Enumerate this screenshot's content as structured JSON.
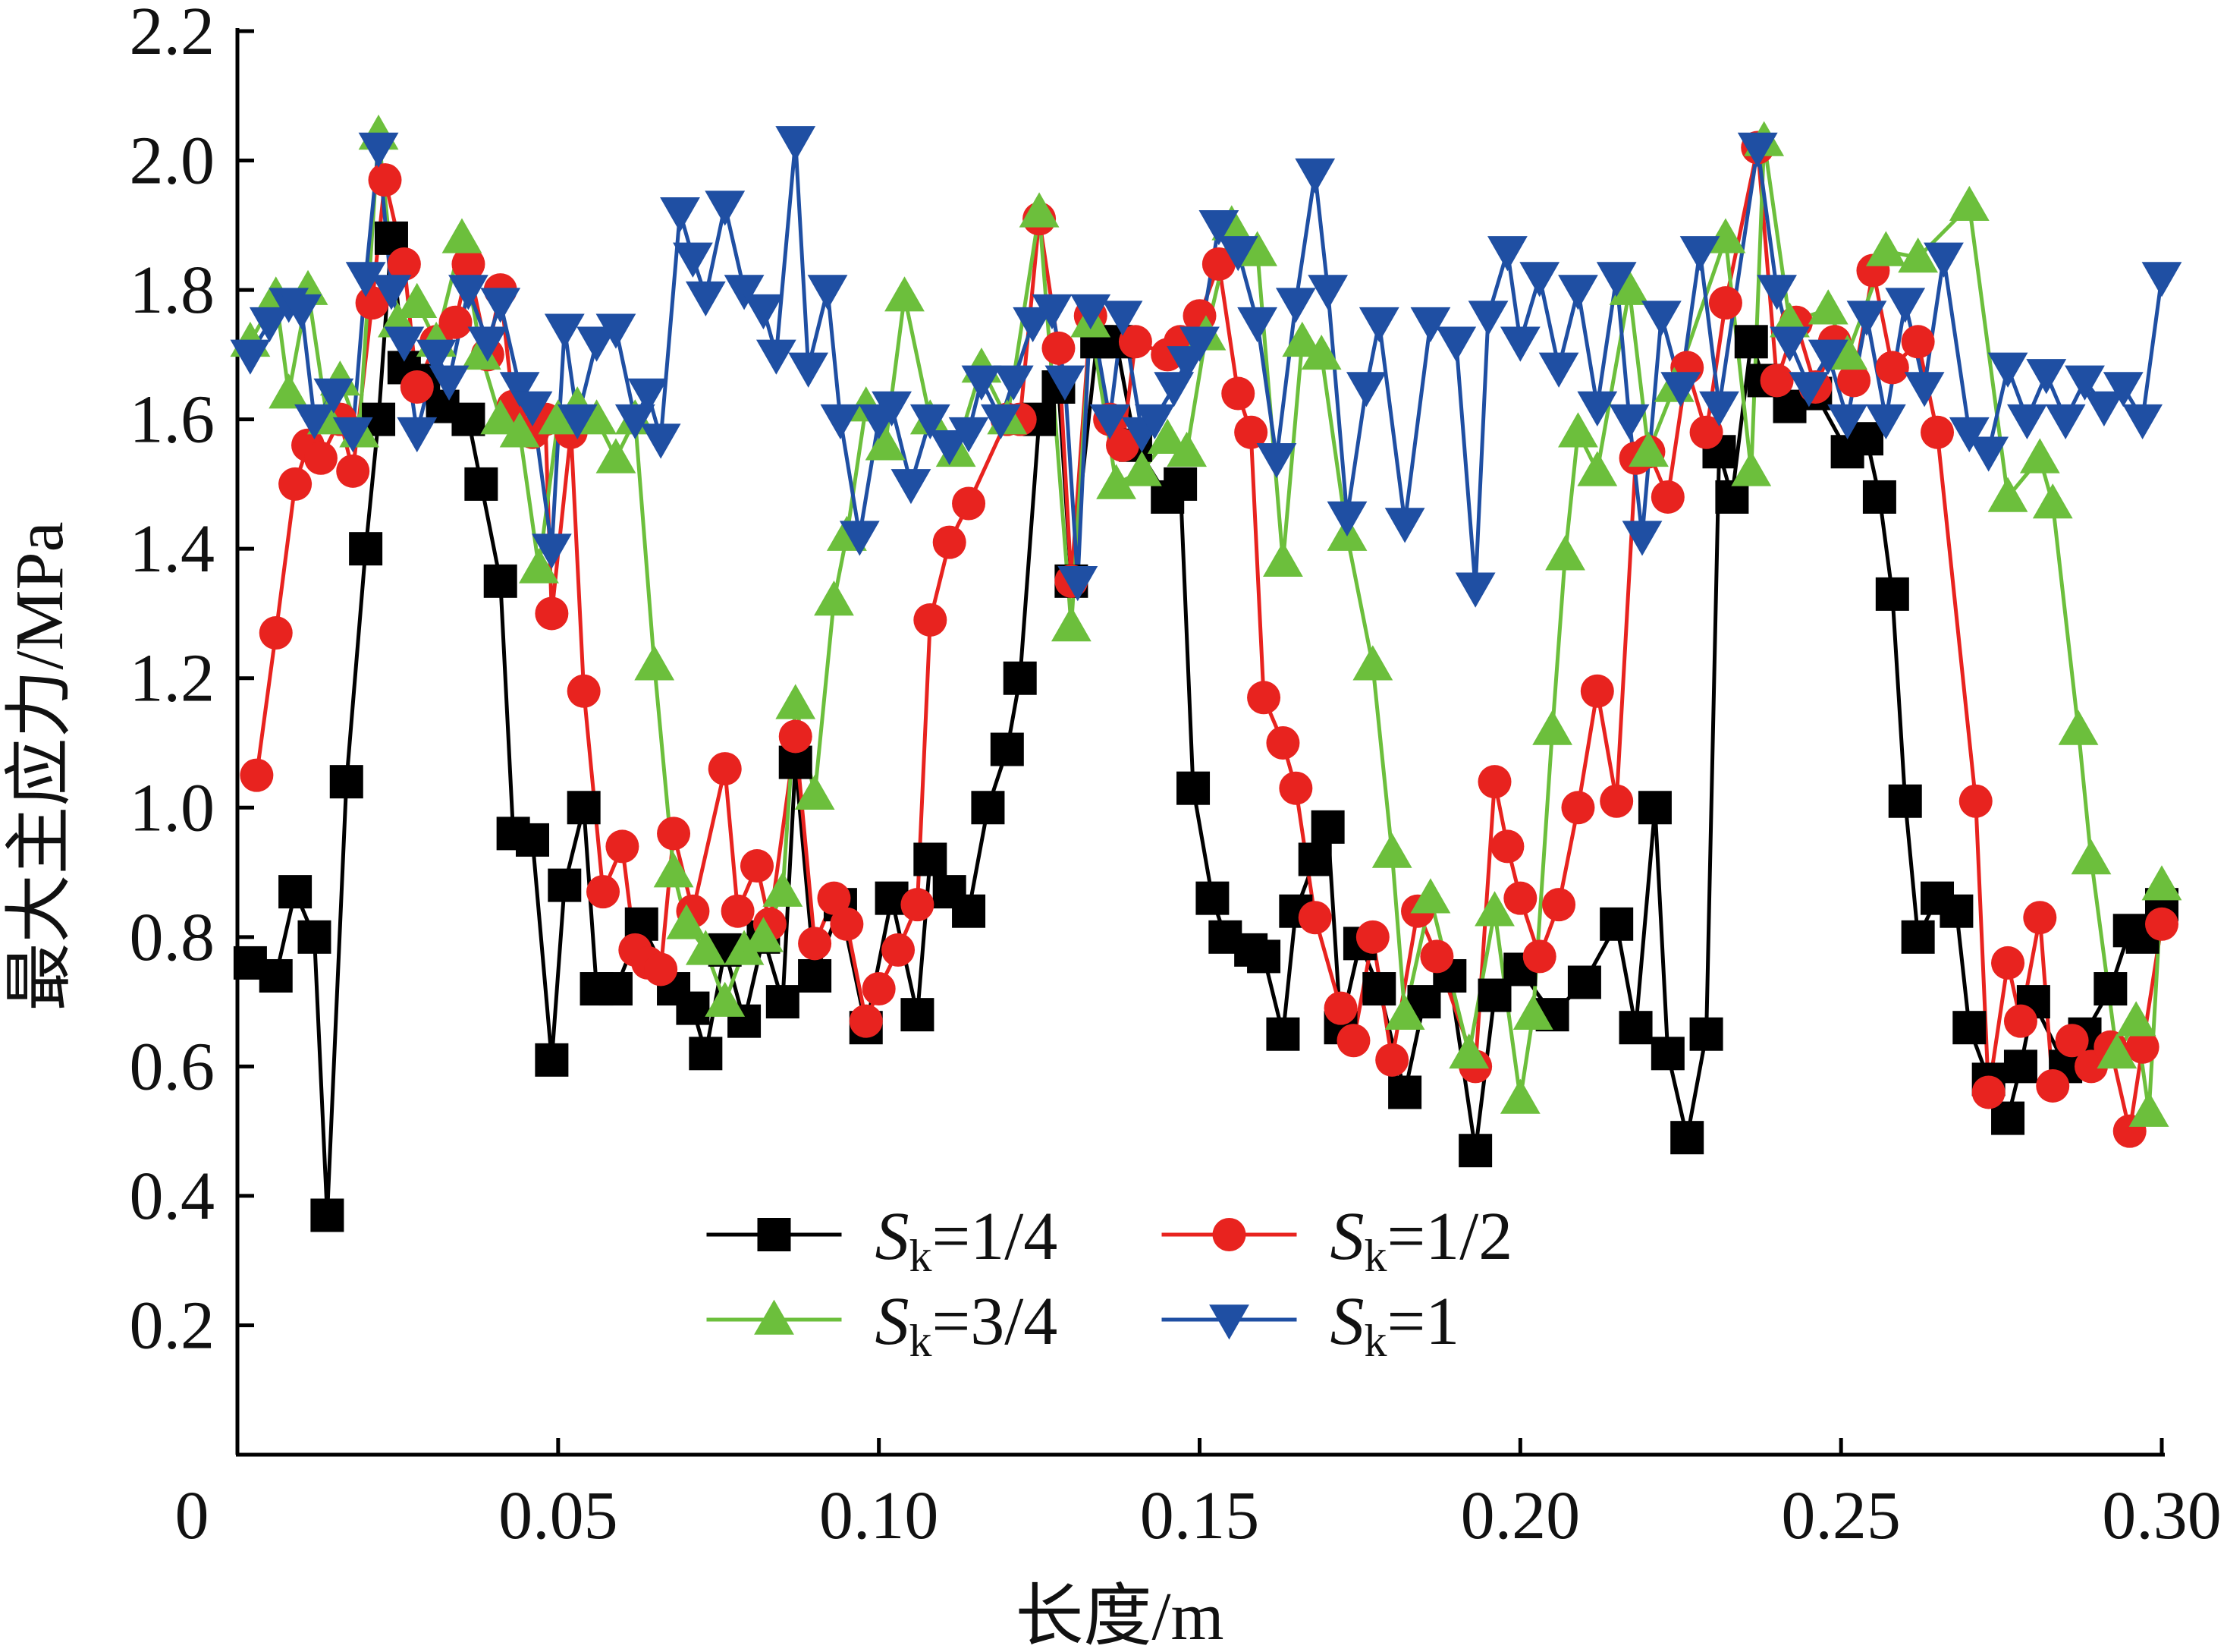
{
  "chart_data": {
    "type": "line",
    "xlabel": "长度/m",
    "ylabel": "最大主应力/MPa",
    "xlim": [
      0,
      0.3
    ],
    "ylim": [
      0,
      2.2
    ],
    "xticks": [
      0,
      0.05,
      {
        "value": 0.1,
        "label": "0.10"
      },
      0.15,
      {
        "value": 0.2,
        "label": "0.20"
      },
      0.25,
      {
        "value": 0.3,
        "label": "0.30"
      }
    ],
    "yticks": [
      0.2,
      0.4,
      0.6,
      0.8,
      {
        "value": 1,
        "label": "1.0"
      },
      1.2,
      1.4,
      1.6,
      1.8,
      {
        "value": 2,
        "label": "2.0"
      },
      2.2
    ],
    "legend_loc": "lower center",
    "series": [
      {
        "name": "Sk=1/4",
        "color": "#000000",
        "marker": "square",
        "x": [
          0.002,
          0.006,
          0.009,
          0.012,
          0.014,
          0.017,
          0.02,
          0.022,
          0.024,
          0.026,
          0.029,
          0.032,
          0.036,
          0.038,
          0.041,
          0.043,
          0.046,
          0.049,
          0.051,
          0.054,
          0.056,
          0.059,
          0.063,
          0.068,
          0.071,
          0.073,
          0.076,
          0.079,
          0.082,
          0.085,
          0.087,
          0.09,
          0.094,
          0.098,
          0.102,
          0.106,
          0.108,
          0.111,
          0.114,
          0.117,
          0.12,
          0.122,
          0.125,
          0.128,
          0.13,
          0.134,
          0.137,
          0.14,
          0.145,
          0.147,
          0.149,
          0.152,
          0.154,
          0.158,
          0.16,
          0.163,
          0.165,
          0.168,
          0.17,
          0.172,
          0.175,
          0.178,
          0.182,
          0.185,
          0.189,
          0.193,
          0.196,
          0.2,
          0.205,
          0.21,
          0.215,
          0.218,
          0.221,
          0.223,
          0.226,
          0.229,
          0.231,
          0.233,
          0.236,
          0.238,
          0.242,
          0.246,
          0.251,
          0.254,
          0.256,
          0.258,
          0.26,
          0.262,
          0.265,
          0.268,
          0.27,
          0.273,
          0.276,
          0.278,
          0.28,
          0.285,
          0.288,
          0.292,
          0.295,
          0.297,
          0.3
        ],
        "values": [
          0.76,
          0.74,
          0.87,
          0.8,
          0.37,
          1.04,
          1.4,
          1.6,
          1.88,
          1.68,
          1.66,
          1.62,
          1.6,
          1.5,
          1.35,
          0.96,
          0.95,
          0.61,
          0.88,
          1.0,
          0.72,
          0.72,
          0.82,
          0.72,
          0.69,
          0.62,
          0.78,
          0.67,
          0.8,
          0.7,
          1.07,
          0.74,
          0.85,
          0.66,
          0.86,
          0.68,
          0.92,
          0.87,
          0.84,
          1.0,
          1.09,
          1.2,
          1.6,
          1.65,
          1.35,
          1.72,
          1.72,
          1.56,
          1.48,
          1.5,
          1.03,
          0.86,
          0.8,
          0.78,
          0.77,
          0.65,
          0.84,
          0.92,
          0.97,
          0.66,
          0.79,
          0.72,
          0.56,
          0.7,
          0.74,
          0.47,
          0.71,
          0.75,
          0.68,
          0.73,
          0.82,
          0.66,
          1.0,
          0.62,
          0.49,
          0.65,
          1.55,
          1.48,
          1.72,
          1.66,
          1.62,
          1.64,
          1.55,
          1.57,
          1.48,
          1.33,
          1.01,
          0.8,
          0.86,
          0.84,
          0.66,
          0.58,
          0.52,
          0.6,
          0.7,
          0.6,
          0.65,
          0.72,
          0.81,
          0.8,
          0.85
        ]
      },
      {
        "name": "Sk=1/2",
        "color": "#e8231f",
        "marker": "circle",
        "x": [
          0.003,
          0.006,
          0.009,
          0.011,
          0.013,
          0.016,
          0.018,
          0.021,
          0.023,
          0.026,
          0.028,
          0.031,
          0.034,
          0.036,
          0.039,
          0.041,
          0.043,
          0.046,
          0.048,
          0.049,
          0.052,
          0.054,
          0.057,
          0.06,
          0.062,
          0.064,
          0.066,
          0.068,
          0.071,
          0.076,
          0.078,
          0.081,
          0.083,
          0.087,
          0.09,
          0.093,
          0.095,
          0.098,
          0.1,
          0.103,
          0.106,
          0.108,
          0.111,
          0.114,
          0.12,
          0.122,
          0.125,
          0.128,
          0.13,
          0.133,
          0.136,
          0.138,
          0.14,
          0.145,
          0.147,
          0.15,
          0.153,
          0.156,
          0.158,
          0.16,
          0.163,
          0.165,
          0.168,
          0.172,
          0.174,
          0.177,
          0.18,
          0.184,
          0.187,
          0.193,
          0.196,
          0.198,
          0.2,
          0.203,
          0.206,
          0.209,
          0.212,
          0.215,
          0.218,
          0.22,
          0.223,
          0.226,
          0.229,
          0.232,
          0.237,
          0.24,
          0.243,
          0.246,
          0.249,
          0.252,
          0.255,
          0.258,
          0.262,
          0.265,
          0.271,
          0.273,
          0.276,
          0.278,
          0.281,
          0.283,
          0.286,
          0.289,
          0.292,
          0.295,
          0.297,
          0.3
        ],
        "values": [
          1.05,
          1.27,
          1.5,
          1.56,
          1.54,
          1.6,
          1.52,
          1.78,
          1.97,
          1.84,
          1.65,
          1.72,
          1.75,
          1.84,
          1.7,
          1.8,
          1.62,
          1.58,
          1.6,
          1.3,
          1.58,
          1.18,
          0.87,
          0.94,
          0.78,
          0.76,
          0.75,
          0.96,
          0.84,
          1.06,
          0.84,
          0.91,
          0.82,
          1.11,
          0.79,
          0.86,
          0.82,
          0.67,
          0.72,
          0.78,
          0.85,
          1.29,
          1.41,
          1.47,
          1.6,
          1.6,
          1.91,
          1.71,
          1.35,
          1.76,
          1.6,
          1.56,
          1.72,
          1.7,
          1.72,
          1.76,
          1.84,
          1.64,
          1.58,
          1.17,
          1.1,
          1.03,
          0.83,
          0.69,
          0.64,
          0.8,
          0.61,
          0.84,
          0.77,
          0.6,
          1.04,
          0.94,
          0.86,
          0.77,
          0.85,
          1.0,
          1.18,
          1.01,
          1.54,
          1.55,
          1.48,
          1.68,
          1.58,
          1.78,
          2.02,
          1.66,
          1.75,
          1.65,
          1.72,
          1.66,
          1.83,
          1.68,
          1.72,
          1.58,
          1.01,
          0.56,
          0.76,
          0.67,
          0.83,
          0.57,
          0.64,
          0.6,
          0.63,
          0.5,
          0.63,
          0.82
        ]
      },
      {
        "name": "Sk=3/4",
        "color": "#6cbf3c",
        "marker": "triangle-up",
        "x": [
          0.002,
          0.006,
          0.008,
          0.011,
          0.014,
          0.016,
          0.019,
          0.022,
          0.025,
          0.028,
          0.031,
          0.035,
          0.038,
          0.041,
          0.044,
          0.047,
          0.05,
          0.053,
          0.056,
          0.059,
          0.062,
          0.065,
          0.068,
          0.07,
          0.073,
          0.076,
          0.079,
          0.082,
          0.085,
          0.087,
          0.09,
          0.093,
          0.095,
          0.098,
          0.101,
          0.104,
          0.108,
          0.112,
          0.116,
          0.12,
          0.125,
          0.13,
          0.133,
          0.137,
          0.141,
          0.145,
          0.148,
          0.151,
          0.155,
          0.159,
          0.163,
          0.166,
          0.169,
          0.173,
          0.177,
          0.18,
          0.182,
          0.186,
          0.192,
          0.196,
          0.2,
          0.202,
          0.205,
          0.207,
          0.209,
          0.212,
          0.217,
          0.22,
          0.224,
          0.232,
          0.236,
          0.238,
          0.242,
          0.248,
          0.251,
          0.257,
          0.262,
          0.27,
          0.276,
          0.281,
          0.283,
          0.287,
          0.289,
          0.293,
          0.296,
          0.298,
          0.3
        ],
        "values": [
          1.72,
          1.79,
          1.64,
          1.8,
          1.6,
          1.66,
          1.58,
          2.04,
          1.75,
          1.78,
          1.72,
          1.88,
          1.7,
          1.6,
          1.58,
          1.37,
          1.6,
          1.62,
          1.6,
          1.54,
          1.6,
          1.22,
          0.9,
          0.82,
          0.78,
          0.7,
          0.78,
          0.8,
          0.87,
          1.16,
          1.02,
          1.32,
          1.42,
          1.62,
          1.56,
          1.79,
          1.6,
          1.55,
          1.68,
          1.6,
          1.92,
          1.28,
          1.75,
          1.5,
          1.52,
          1.57,
          1.55,
          1.73,
          1.9,
          1.86,
          1.38,
          1.72,
          1.7,
          1.42,
          1.22,
          0.93,
          0.68,
          0.86,
          0.62,
          0.84,
          0.55,
          0.68,
          1.12,
          1.39,
          1.58,
          1.52,
          1.8,
          1.55,
          1.65,
          1.88,
          1.52,
          2.03,
          1.75,
          1.77,
          1.7,
          1.86,
          1.85,
          1.93,
          1.48,
          1.54,
          1.47,
          1.12,
          0.92,
          0.62,
          0.67,
          0.53,
          0.88
        ]
      },
      {
        "name": "Sk=1",
        "color": "#1f4fa3",
        "marker": "triangle-down",
        "x": [
          0.002,
          0.005,
          0.008,
          0.01,
          0.012,
          0.015,
          0.018,
          0.02,
          0.022,
          0.024,
          0.026,
          0.028,
          0.031,
          0.033,
          0.036,
          0.039,
          0.041,
          0.044,
          0.046,
          0.049,
          0.051,
          0.053,
          0.056,
          0.059,
          0.062,
          0.064,
          0.066,
          0.069,
          0.071,
          0.073,
          0.076,
          0.079,
          0.082,
          0.084,
          0.087,
          0.089,
          0.092,
          0.094,
          0.097,
          0.1,
          0.102,
          0.105,
          0.108,
          0.111,
          0.114,
          0.116,
          0.119,
          0.121,
          0.124,
          0.127,
          0.129,
          0.131,
          0.133,
          0.136,
          0.138,
          0.141,
          0.143,
          0.146,
          0.148,
          0.15,
          0.153,
          0.156,
          0.159,
          0.162,
          0.165,
          0.168,
          0.17,
          0.173,
          0.176,
          0.178,
          0.182,
          0.186,
          0.19,
          0.193,
          0.195,
          0.198,
          0.2,
          0.203,
          0.206,
          0.209,
          0.212,
          0.215,
          0.217,
          0.219,
          0.222,
          0.225,
          0.228,
          0.231,
          0.237,
          0.24,
          0.242,
          0.245,
          0.248,
          0.251,
          0.254,
          0.257,
          0.26,
          0.263,
          0.266,
          0.27,
          0.273,
          0.276,
          0.279,
          0.282,
          0.285,
          0.288,
          0.291,
          0.294,
          0.297,
          0.3
        ],
        "values": [
          1.7,
          1.75,
          1.78,
          1.77,
          1.6,
          1.64,
          1.58,
          1.82,
          2.02,
          1.8,
          1.72,
          1.58,
          1.7,
          1.66,
          1.8,
          1.72,
          1.78,
          1.65,
          1.62,
          1.4,
          1.74,
          1.6,
          1.72,
          1.74,
          1.6,
          1.64,
          1.57,
          1.92,
          1.85,
          1.79,
          1.93,
          1.8,
          1.77,
          1.7,
          2.03,
          1.68,
          1.8,
          1.6,
          1.42,
          1.6,
          1.62,
          1.5,
          1.6,
          1.56,
          1.58,
          1.66,
          1.6,
          1.66,
          1.75,
          1.77,
          1.66,
          1.35,
          1.77,
          1.6,
          1.76,
          1.58,
          1.6,
          1.65,
          1.69,
          1.72,
          1.9,
          1.86,
          1.75,
          1.54,
          1.78,
          1.98,
          1.8,
          1.45,
          1.65,
          1.75,
          1.44,
          1.75,
          1.72,
          1.34,
          1.76,
          1.86,
          1.72,
          1.82,
          1.68,
          1.8,
          1.62,
          1.82,
          1.6,
          1.42,
          1.76,
          1.65,
          1.86,
          1.62,
          2.02,
          1.8,
          1.72,
          1.65,
          1.7,
          1.6,
          1.76,
          1.6,
          1.78,
          1.65,
          1.85,
          1.58,
          1.55,
          1.68,
          1.6,
          1.67,
          1.6,
          1.66,
          1.62,
          1.65,
          1.6,
          1.82
        ]
      }
    ]
  }
}
